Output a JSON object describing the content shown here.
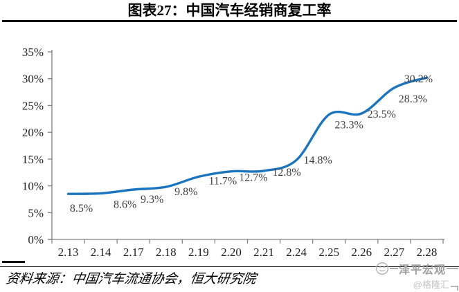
{
  "title": "图表27：中国汽车经销商复工率",
  "source": "资料来源：中国汽车流通协会，恒大研究院",
  "watermark": {
    "brand": "泽平宏观",
    "handle": "@格隆汇"
  },
  "chart_data": {
    "type": "line",
    "title": "中国汽车经销商复工率",
    "categories": [
      "2.13",
      "2.14",
      "2.17",
      "2.18",
      "2.19",
      "2.20",
      "2.21",
      "2.24",
      "2.25",
      "2.26",
      "2.27",
      "2.28"
    ],
    "values": [
      8.5,
      8.6,
      9.3,
      9.8,
      11.7,
      12.7,
      12.8,
      14.8,
      23.3,
      23.5,
      28.3,
      30.2
    ],
    "point_labels": [
      "8.5%",
      "8.6%",
      "9.3%",
      "9.8%",
      "11.7%",
      "12.7%",
      "12.8%",
      "14.8%",
      "23.3%",
      "23.5%",
      "28.3%",
      "30.2%"
    ],
    "xlabel": "",
    "ylabel": "",
    "ylim": [
      0,
      35
    ],
    "ytick_step": 5,
    "ytick_labels": [
      "0%",
      "5%",
      "10%",
      "15%",
      "20%",
      "25%",
      "30%",
      "35%"
    ],
    "grid": false,
    "legend": "none",
    "smooth": true,
    "line_color": "#1B74BE",
    "axis_color": "#808080",
    "axis_text_color": "#1f1f1f",
    "data_label_color": "#3f3f3f"
  }
}
